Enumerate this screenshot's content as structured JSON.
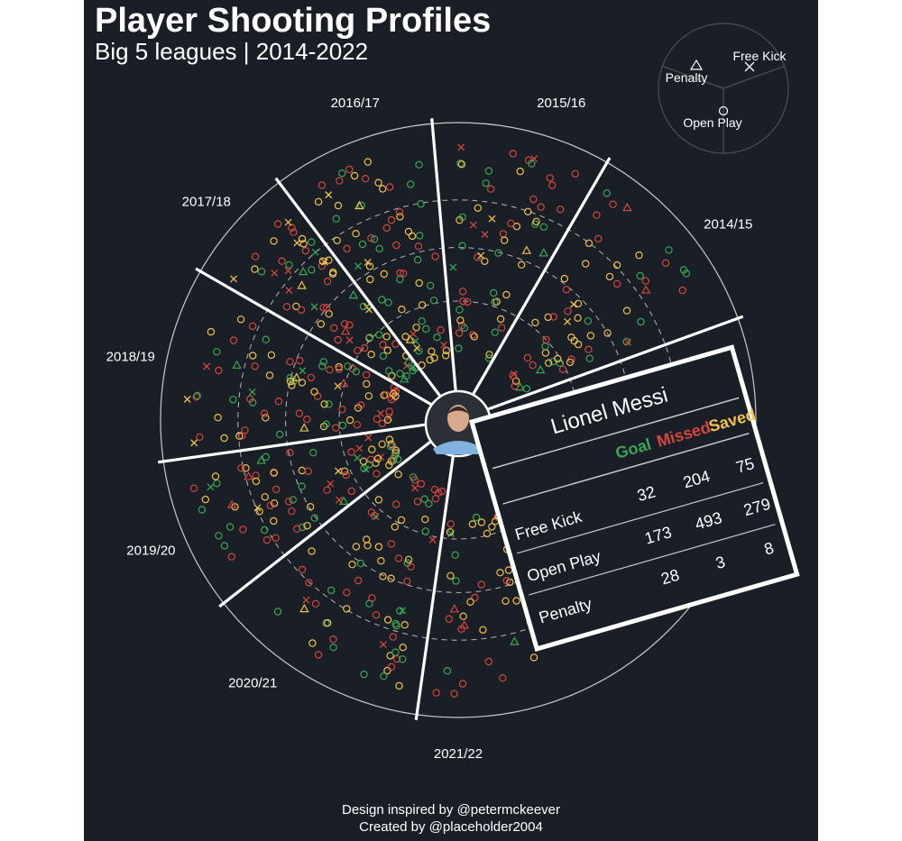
{
  "title": "Player Shooting Profiles",
  "subtitle": "Big 5 leagues | 2014-2022",
  "credits": {
    "line1": "Design inspired by @petermckeever",
    "line2": "Created by @placeholder2004"
  },
  "colors": {
    "background": "#1a1f27",
    "goal": "#3aa655",
    "missed": "#d6453d",
    "saved": "#f2c14e",
    "ring": "#c8c8c8"
  },
  "legend": {
    "items": [
      {
        "label": "Penalty",
        "shape": "triangle"
      },
      {
        "label": "Free Kick",
        "shape": "cross"
      },
      {
        "label": "Open Play",
        "shape": "circle"
      }
    ]
  },
  "chart_data": {
    "type": "scatter",
    "subtype": "radial shot map by season",
    "seasons": [
      "2014/15",
      "2015/16",
      "2016/17",
      "2017/18",
      "2018/19",
      "2019/20",
      "2020/21",
      "2021/22"
    ],
    "series": [
      {
        "name": "Goal",
        "color": "#3aa655"
      },
      {
        "name": "Missed",
        "color": "#d6453d"
      },
      {
        "name": "Saved",
        "color": "#f2c14e"
      }
    ],
    "shot_types": [
      "Free Kick",
      "Open Play",
      "Penalty"
    ],
    "table": {
      "player": "Lionel Messi",
      "columns": [
        "Goal",
        "Missed",
        "Saved"
      ],
      "rows": [
        {
          "label": "Free Kick",
          "values": [
            32,
            204,
            75
          ]
        },
        {
          "label": "Open Play",
          "values": [
            173,
            493,
            279
          ]
        },
        {
          "label": "Penalty",
          "values": [
            28,
            3,
            8
          ]
        }
      ]
    },
    "grid": "dashed concentric rings"
  }
}
